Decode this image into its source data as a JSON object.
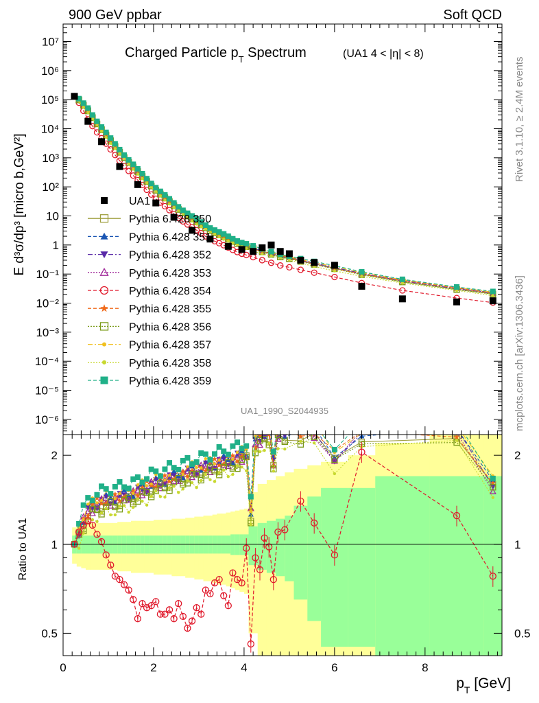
{
  "header": {
    "left": "900 GeV ppbar",
    "right": "Soft QCD"
  },
  "side_labels": {
    "top": "Rivet 3.1.10, ≥ 2.4M events",
    "bottom": "mcplots.cern.ch [arXiv:1306.3436]"
  },
  "colors": {
    "UA1": "#000000",
    "350": "#a0a040",
    "351": "#1a56b3",
    "352": "#5a2aa8",
    "353": "#a0299a",
    "354": "#e0182a",
    "355": "#f06a1a",
    "356": "#7a9a18",
    "357": "#f0c020",
    "358": "#c8d830",
    "359": "#20b088",
    "band_yellow": "#ffff99",
    "band_green": "#99ff99"
  },
  "chart_data": [
    {
      "type": "scatter",
      "title": "Charged Particle p_T Spectrum",
      "title_suffix": "(UA1   4 < |η| < 8)",
      "watermark": "UA1_1990_S2044935",
      "ylabel": "E d³σ/dp³ [micro b,GeV²]",
      "xlabel": "p_T [GeV]",
      "yscale": "log",
      "ylim": [
        3e-07,
        40000000.0
      ],
      "xlim": [
        0,
        9.7
      ],
      "y_tick_labels": [
        "10⁻⁶",
        "10⁻⁵",
        "10⁻⁴",
        "10⁻³",
        "10⁻²",
        "10⁻¹",
        "1",
        "10",
        "10²",
        "10³",
        "10⁴",
        "10⁵",
        "10⁶",
        "10⁷"
      ],
      "legend_position": "middle-left",
      "series": [
        {
          "name": "UA1",
          "marker": "square-filled",
          "x": [
            0.25,
            0.55,
            0.85,
            1.25,
            1.65,
            2.05,
            2.45,
            2.85,
            3.25,
            3.65,
            3.95,
            4.2,
            4.4,
            4.6,
            4.8,
            5.0,
            5.25,
            5.55,
            6.0,
            6.6,
            7.5,
            8.7,
            9.5
          ],
          "y": [
            130000,
            18000,
            3600,
            500,
            120,
            28,
            9,
            3.2,
            1.6,
            0.9,
            0.7,
            0.6,
            0.8,
            1.0,
            0.6,
            0.5,
            0.3,
            0.25,
            0.2,
            0.038,
            0.014,
            0.011,
            0.012
          ]
        },
        {
          "name": "Pythia 6.428 350",
          "marker": "square-open",
          "line": "solid",
          "factor": 1.4
        },
        {
          "name": "Pythia 6.428 351",
          "marker": "triangle-up",
          "line": "dashed",
          "factor": 1.5
        },
        {
          "name": "Pythia 6.428 352",
          "marker": "triangle-down",
          "line": "dashdot",
          "factor": 1.5
        },
        {
          "name": "Pythia 6.428 353",
          "marker": "triangle-open",
          "line": "dotted",
          "factor": 1.45
        },
        {
          "name": "Pythia 6.428 354",
          "marker": "circle-open",
          "line": "dashed",
          "factor": 0.7
        },
        {
          "name": "Pythia 6.428 355",
          "marker": "star",
          "line": "dashed",
          "factor": 1.45
        },
        {
          "name": "Pythia 6.428 356",
          "marker": "square-open",
          "line": "dotted",
          "factor": 1.35
        },
        {
          "name": "Pythia 6.428 357",
          "marker": "dot",
          "line": "dashdot",
          "factor": 1.6
        },
        {
          "name": "Pythia 6.428 358",
          "marker": "dot",
          "line": "dotted",
          "factor": 1.2
        },
        {
          "name": "Pythia 6.428 359",
          "marker": "square-filled",
          "line": "dashed",
          "factor": 1.7
        }
      ],
      "mc_x": [
        0.25,
        0.35,
        0.45,
        0.55,
        0.65,
        0.75,
        0.85,
        0.95,
        1.05,
        1.15,
        1.25,
        1.35,
        1.45,
        1.55,
        1.65,
        1.75,
        1.85,
        1.95,
        2.05,
        2.15,
        2.25,
        2.35,
        2.45,
        2.55,
        2.65,
        2.75,
        2.85,
        2.95,
        3.05,
        3.15,
        3.25,
        3.35,
        3.45,
        3.55,
        3.65,
        3.75,
        3.85,
        3.95,
        4.05,
        4.2,
        4.4,
        4.6,
        4.8,
        5.0,
        5.25,
        5.55,
        6.0,
        6.6,
        7.5,
        8.7,
        9.5
      ],
      "mc_y": [
        130000,
        85000,
        50000,
        30000,
        18000,
        11000,
        6800,
        4300,
        2700,
        1750,
        1150,
        760,
        510,
        345,
        236,
        163,
        114,
        80,
        57,
        41,
        30,
        22,
        16.5,
        12.5,
        9.5,
        7.3,
        5.7,
        4.5,
        3.6,
        2.9,
        2.35,
        1.95,
        1.62,
        1.36,
        1.15,
        0.98,
        0.84,
        0.73,
        0.64,
        0.53,
        0.42,
        0.35,
        0.29,
        0.25,
        0.2,
        0.155,
        0.11,
        0.07,
        0.04,
        0.022,
        0.015
      ]
    },
    {
      "type": "scatter",
      "ylabel": "Ratio to UA1",
      "xlabel": "p_T [GeV]",
      "yscale": "log",
      "ylim": [
        0.42,
        2.35
      ],
      "xlim": [
        0,
        9.7
      ],
      "x_tick_labels": [
        "0",
        "2",
        "4",
        "6",
        "8"
      ],
      "y_tick_labels": [
        "0.5",
        "1",
        "2"
      ],
      "bands": {
        "x_edges": [
          0.2,
          0.3,
          0.4,
          0.5,
          0.6,
          0.7,
          0.8,
          0.9,
          1.0,
          1.1,
          1.2,
          1.3,
          1.4,
          1.5,
          1.6,
          1.7,
          1.8,
          1.9,
          2.0,
          2.1,
          2.2,
          2.3,
          2.4,
          2.5,
          2.6,
          2.7,
          2.8,
          2.9,
          3.0,
          3.1,
          3.2,
          3.3,
          3.4,
          3.5,
          3.6,
          3.7,
          3.8,
          3.9,
          4.0,
          4.1,
          4.3,
          4.5,
          4.7,
          4.9,
          5.1,
          5.4,
          5.7,
          6.3,
          6.9,
          8.1,
          9.3,
          9.7
        ],
        "green_half": [
          0.07,
          0.07,
          0.07,
          0.07,
          0.07,
          0.07,
          0.07,
          0.07,
          0.07,
          0.07,
          0.07,
          0.07,
          0.07,
          0.07,
          0.07,
          0.07,
          0.07,
          0.07,
          0.07,
          0.07,
          0.07,
          0.07,
          0.07,
          0.07,
          0.07,
          0.07,
          0.07,
          0.07,
          0.07,
          0.07,
          0.07,
          0.07,
          0.07,
          0.07,
          0.07,
          0.08,
          0.08,
          0.08,
          0.08,
          0.15,
          0.18,
          0.2,
          0.22,
          0.25,
          0.35,
          0.45,
          0.55,
          0.55,
          0.7,
          0.7,
          0.7
        ],
        "yellow_half": [
          0.14,
          0.16,
          0.17,
          0.18,
          0.18,
          0.18,
          0.18,
          0.18,
          0.18,
          0.18,
          0.19,
          0.19,
          0.19,
          0.2,
          0.2,
          0.2,
          0.2,
          0.2,
          0.21,
          0.21,
          0.21,
          0.21,
          0.22,
          0.22,
          0.22,
          0.23,
          0.23,
          0.24,
          0.24,
          0.25,
          0.25,
          0.26,
          0.27,
          0.27,
          0.28,
          0.29,
          0.3,
          0.31,
          0.32,
          0.5,
          0.6,
          0.65,
          0.7,
          0.75,
          0.8,
          0.85,
          0.9,
          1.0,
          1.2,
          1.4,
          1.4
        ]
      },
      "ratio_x": [
        0.25,
        0.35,
        0.45,
        0.55,
        0.65,
        0.75,
        0.85,
        0.95,
        1.05,
        1.15,
        1.25,
        1.35,
        1.45,
        1.55,
        1.65,
        1.75,
        1.85,
        1.95,
        2.05,
        2.15,
        2.25,
        2.35,
        2.45,
        2.55,
        2.65,
        2.75,
        2.85,
        2.95,
        3.05,
        3.15,
        3.25,
        3.35,
        3.45,
        3.55,
        3.65,
        3.75,
        3.85,
        3.95,
        4.05,
        4.15,
        4.25,
        4.35,
        4.45,
        4.55,
        4.65,
        4.75,
        4.9,
        5.25,
        5.55,
        6.0,
        6.6,
        8.7,
        9.5
      ],
      "ratio_354": [
        1.0,
        1.1,
        1.16,
        1.2,
        1.16,
        1.08,
        1.02,
        0.92,
        0.85,
        0.78,
        0.76,
        0.73,
        0.7,
        0.65,
        0.56,
        0.63,
        0.61,
        0.62,
        0.64,
        0.58,
        0.58,
        0.6,
        0.56,
        0.63,
        0.57,
        0.52,
        0.55,
        0.61,
        0.58,
        0.7,
        0.68,
        0.74,
        0.76,
        0.67,
        0.62,
        0.8,
        0.76,
        0.74,
        0.97,
        0.46,
        0.9,
        0.82,
        1.05,
        0.98,
        0.76,
        1.1,
        1.12,
        1.4,
        1.18,
        0.92,
        2.05,
        1.25,
        0.78
      ],
      "ratio_base": [
        1.0,
        1.12,
        1.22,
        1.3,
        1.35,
        1.38,
        1.4,
        1.42,
        1.43,
        1.44,
        1.45,
        1.47,
        1.48,
        1.5,
        1.52,
        1.55,
        1.57,
        1.6,
        1.62,
        1.64,
        1.66,
        1.68,
        1.7,
        1.72,
        1.74,
        1.76,
        1.78,
        1.8,
        1.82,
        1.84,
        1.86,
        1.88,
        1.9,
        1.92,
        1.94,
        1.96,
        1.98,
        2.0,
        2.05,
        1.3,
        2.2,
        2.3,
        2.4,
        2.4,
        1.9,
        2.4,
        2.4,
        2.4,
        2.4,
        2.0,
        2.4,
        2.4,
        1.6
      ]
    }
  ]
}
